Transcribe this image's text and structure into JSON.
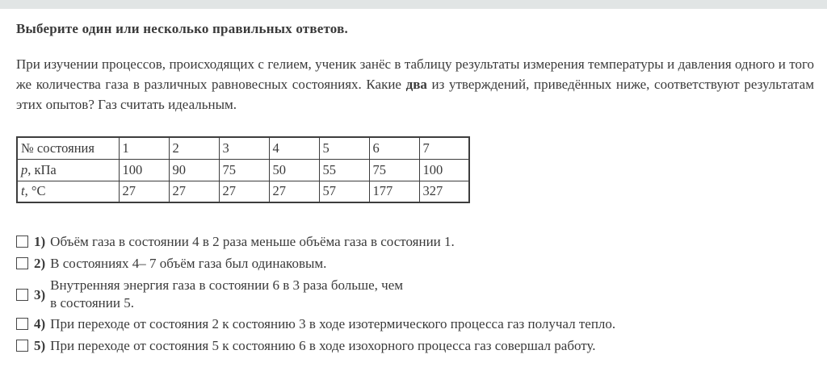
{
  "page": {
    "top_bar_color": "#e1e5e5",
    "background_color": "#ffffff",
    "text_color": "#3a3a3a"
  },
  "heading": "Выберите один или несколько правильных ответов.",
  "question": {
    "part1": "При изучении процессов, происходящих с гелием, ученик занёс в таблицу результаты измерения температуры и давления одного и того же количества газа в различных равновесных состояниях. Какие ",
    "bold_word": "два",
    "part2": " из утверждений, приведённых ниже, соответствуют результатам этих опытов? Газ считать идеальным."
  },
  "table": {
    "rows": [
      {
        "header": "№ состояния",
        "cells": [
          "1",
          "2",
          "3",
          "4",
          "5",
          "6",
          "7"
        ]
      },
      {
        "var": "p",
        "rest": ", кПа",
        "cells": [
          "100",
          "90",
          "75",
          "50",
          "55",
          "75",
          "100"
        ]
      },
      {
        "var": "t",
        "rest": ", °C",
        "cells": [
          "27",
          "27",
          "27",
          "27",
          "57",
          "177",
          "327"
        ]
      }
    ]
  },
  "options": [
    {
      "number": "1)",
      "text": "Объём газа в состоянии 4 в 2 раза меньше объёма газа в состоянии 1.",
      "checked": false
    },
    {
      "number": "2)",
      "text": "В состояниях 4– 7 объём газа был одинаковым.",
      "checked": false
    },
    {
      "number": "3)",
      "lines": [
        "Внутренняя энергия газа в состоянии 6 в 3 раза больше, чем",
        "в состоянии 5."
      ],
      "checked": false
    },
    {
      "number": "4)",
      "text": "При переходе от состояния 2 к состоянию 3 в ходе изотермического процесса газ получал тепло.",
      "checked": false
    },
    {
      "number": "5)",
      "text": "При переходе от состояния 5 к состоянию 6 в ходе изохорного процесса газ совершал работу.",
      "checked": false
    }
  ]
}
